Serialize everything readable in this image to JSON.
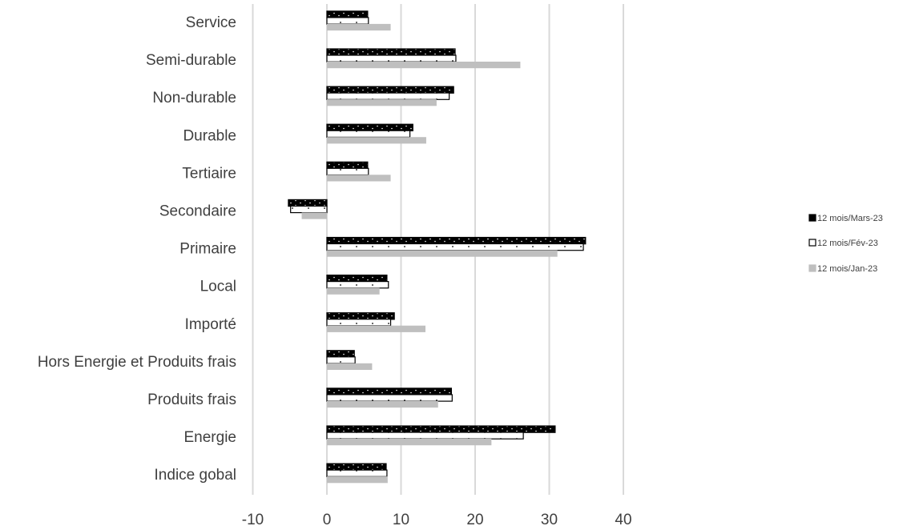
{
  "chart_data": {
    "type": "bar",
    "orientation": "horizontal",
    "categories": [
      "Service",
      "Semi-durable",
      "Non-durable",
      "Durable",
      "Tertiaire",
      "Secondaire",
      "Primaire",
      "Local",
      "Importé",
      "Hors Energie et Produits frais",
      "Produits frais",
      "Energie",
      "Indice gobal"
    ],
    "series": [
      {
        "name": "12 mois/Mars-23",
        "color": "#000000",
        "pattern": "dots-on-black",
        "values": [
          5.5,
          17.3,
          17.1,
          11.6,
          5.5,
          -5.2,
          34.9,
          8.1,
          9.1,
          3.7,
          16.8,
          30.8,
          8.0
        ]
      },
      {
        "name": "12 mois/Fév-23",
        "color": "#ffffff",
        "pattern": "dots-on-white",
        "values": [
          5.6,
          17.4,
          16.5,
          11.2,
          5.6,
          -4.9,
          34.6,
          8.3,
          8.6,
          3.8,
          16.9,
          26.5,
          8.1
        ]
      },
      {
        "name": "12 mois/Jan-23",
        "color": "#bfbfbf",
        "pattern": "solid",
        "values": [
          8.6,
          26.1,
          14.8,
          13.4,
          8.6,
          -3.4,
          31.1,
          7.1,
          13.3,
          6.1,
          15.0,
          22.2,
          8.2
        ]
      }
    ],
    "xticks": [
      "-10",
      "0",
      "10",
      "20",
      "30",
      "40"
    ],
    "xlim": [
      -10,
      40
    ],
    "grid": true,
    "legend_position": "right",
    "title": "",
    "xlabel": "",
    "ylabel": ""
  }
}
